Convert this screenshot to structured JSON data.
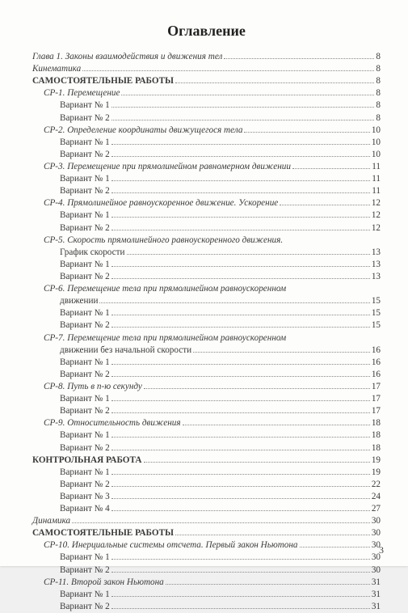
{
  "title": "Оглавление",
  "page_number": "3",
  "entries": [
    {
      "label": "Глава 1. Законы взаимодействия и движения тел",
      "page": "8",
      "italic": true,
      "indent": 0
    },
    {
      "label": "Кинематика",
      "page": "8",
      "italic": true,
      "indent": 0
    },
    {
      "label": "САМОСТОЯТЕЛЬНЫЕ РАБОТЫ",
      "page": "8",
      "bold": true,
      "indent": 0
    },
    {
      "label": "СР-1. Перемещение",
      "page": "8",
      "italic": true,
      "indent": 1
    },
    {
      "label": "Вариант № 1",
      "page": "8",
      "indent": 2
    },
    {
      "label": "Вариант № 2",
      "page": "8",
      "indent": 2
    },
    {
      "label": "СР-2. Определение координаты движущегося тела",
      "page": "10",
      "italic": true,
      "indent": 1
    },
    {
      "label": "Вариант № 1",
      "page": "10",
      "indent": 2
    },
    {
      "label": "Вариант № 2",
      "page": "10",
      "indent": 2
    },
    {
      "label": "СР-3. Перемещение при прямолинейном равномерном движении",
      "page": "11",
      "italic": true,
      "indent": 1
    },
    {
      "label": "Вариант № 1",
      "page": "11",
      "indent": 2
    },
    {
      "label": "Вариант № 2",
      "page": "11",
      "indent": 2
    },
    {
      "label": "СР-4. Прямолинейное равноускоренное движение. Ускорение",
      "page": "12",
      "italic": true,
      "indent": 1
    },
    {
      "label": "Вариант № 1",
      "page": "12",
      "indent": 2
    },
    {
      "label": "Вариант № 2",
      "page": "12",
      "indent": 2
    },
    {
      "label": "СР-5. Скорость прямолинейного равноускоренного движения.",
      "page": "",
      "italic": true,
      "indent": 1,
      "nodots": true
    },
    {
      "label": "График скорости",
      "page": "13",
      "indent": 2
    },
    {
      "label": "Вариант № 1",
      "page": "13",
      "indent": 2
    },
    {
      "label": "Вариант № 2",
      "page": "13",
      "indent": 2
    },
    {
      "label": "СР-6. Перемещение тела при прямолинейном равноускоренном",
      "page": "",
      "italic": true,
      "indent": 1,
      "nodots": true
    },
    {
      "label": "движении",
      "page": "15",
      "indent": 2
    },
    {
      "label": "Вариант № 1",
      "page": "15",
      "indent": 2
    },
    {
      "label": "Вариант № 2",
      "page": "15",
      "indent": 2
    },
    {
      "label": "СР-7. Перемещение тела при прямолинейном равноускоренном",
      "page": "",
      "italic": true,
      "indent": 1,
      "nodots": true
    },
    {
      "label": "движении без начальной скорости",
      "page": "16",
      "indent": 2
    },
    {
      "label": "Вариант № 1",
      "page": "16",
      "indent": 2
    },
    {
      "label": "Вариант № 2",
      "page": "16",
      "indent": 2
    },
    {
      "label": "СР-8. Путь в n-ю секунду",
      "page": "17",
      "italic": true,
      "indent": 1
    },
    {
      "label": "Вариант № 1",
      "page": "17",
      "indent": 2
    },
    {
      "label": "Вариант № 2",
      "page": "17",
      "indent": 2
    },
    {
      "label": "СР-9. Относительность движения",
      "page": "18",
      "italic": true,
      "indent": 1
    },
    {
      "label": "Вариант № 1",
      "page": "18",
      "indent": 2
    },
    {
      "label": "Вариант № 2",
      "page": "18",
      "indent": 2
    },
    {
      "label": "КОНТРОЛЬНАЯ РАБОТА",
      "page": "19",
      "bold": true,
      "indent": 0
    },
    {
      "label": "Вариант № 1",
      "page": "19",
      "indent": 2
    },
    {
      "label": "Вариант № 2",
      "page": "22",
      "indent": 2
    },
    {
      "label": "Вариант № 3",
      "page": "24",
      "indent": 2
    },
    {
      "label": "Вариант № 4",
      "page": "27",
      "indent": 2
    },
    {
      "label": "Динамика",
      "page": "30",
      "italic": true,
      "indent": 0
    },
    {
      "label": "САМОСТОЯТЕЛЬНЫЕ РАБОТЫ",
      "page": "30",
      "bold": true,
      "indent": 0
    },
    {
      "label": "СР-10. Инерциальные системы отсчета. Первый закон Ньютона",
      "page": "30",
      "italic": true,
      "indent": 1
    },
    {
      "label": "Вариант № 1",
      "page": "30",
      "indent": 2
    },
    {
      "label": "Вариант № 2",
      "page": "30",
      "indent": 2
    },
    {
      "label": "СР-11. Второй закон Ньютона",
      "page": "31",
      "italic": true,
      "indent": 1
    },
    {
      "label": "Вариант № 1",
      "page": "31",
      "indent": 2
    },
    {
      "label": "Вариант № 2",
      "page": "31",
      "indent": 2
    }
  ]
}
